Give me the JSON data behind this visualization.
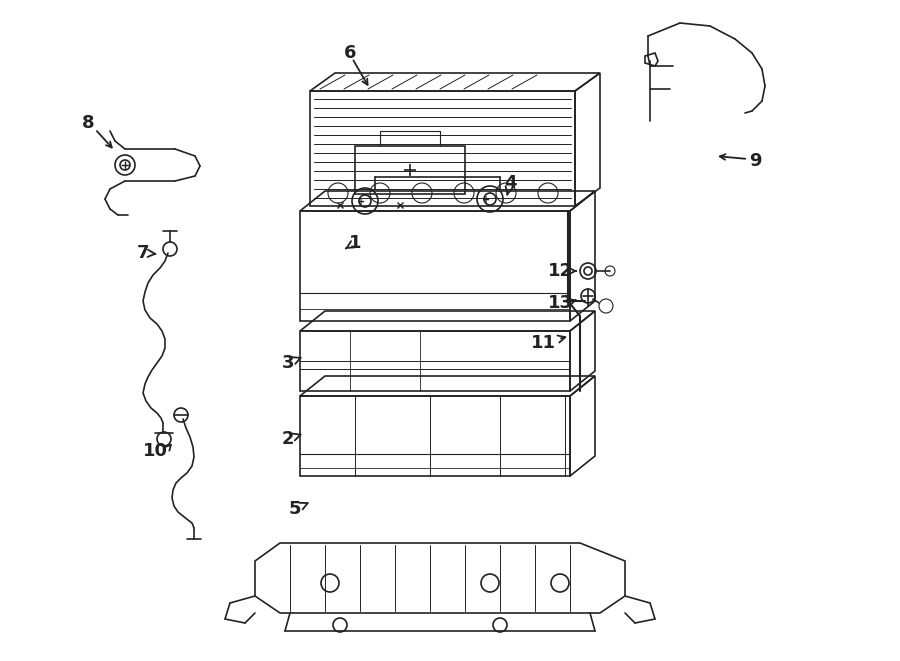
{
  "bg_color": "#ffffff",
  "line_color": "#222222",
  "figsize": [
    9.0,
    6.61
  ],
  "dpi": 100
}
